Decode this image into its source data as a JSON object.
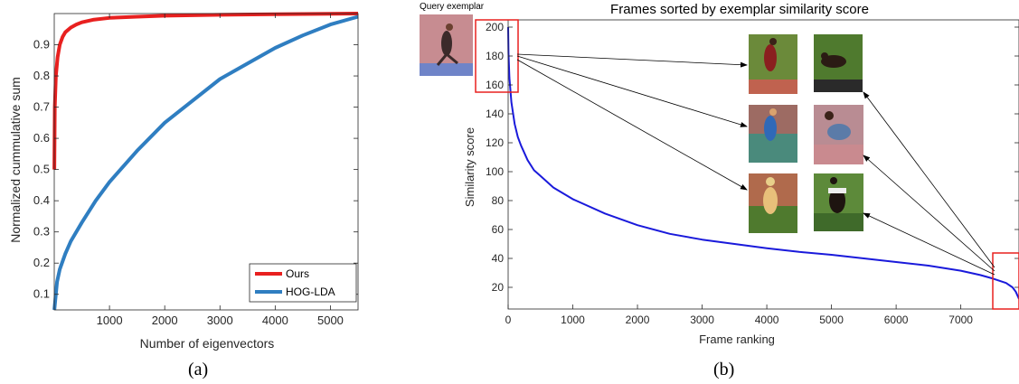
{
  "chart_data": [
    {
      "type": "line",
      "title": "",
      "xlabel": "Number of eigenvectors",
      "ylabel": "Normalized cummulative sum",
      "xlim": [
        0,
        5500
      ],
      "ylim": [
        0.05,
        1.0
      ],
      "xticks": [
        1000,
        2000,
        3000,
        4000,
        5000
      ],
      "yticks": [
        0.1,
        0.2,
        0.3,
        0.4,
        0.5,
        0.6,
        0.7,
        0.8,
        0.9
      ],
      "grid": false,
      "legend_position": "bottom-right",
      "series": [
        {
          "name": "Ours",
          "color": "#e8201f",
          "x": [
            1,
            10,
            30,
            60,
            100,
            150,
            200,
            300,
            400,
            500,
            700,
            1000,
            1500,
            2000,
            3000,
            4000,
            5500
          ],
          "y": [
            0.5,
            0.7,
            0.8,
            0.86,
            0.9,
            0.925,
            0.94,
            0.955,
            0.965,
            0.972,
            0.98,
            0.986,
            0.99,
            0.993,
            0.996,
            0.998,
            1.0
          ]
        },
        {
          "name": "HOG-LDA",
          "color": "#2f7ec1",
          "x": [
            1,
            50,
            100,
            200,
            300,
            500,
            750,
            1000,
            1500,
            2000,
            2500,
            3000,
            3500,
            4000,
            4500,
            5000,
            5500
          ],
          "y": [
            0.05,
            0.14,
            0.18,
            0.23,
            0.27,
            0.33,
            0.4,
            0.46,
            0.56,
            0.65,
            0.72,
            0.79,
            0.84,
            0.89,
            0.93,
            0.965,
            0.99
          ]
        }
      ]
    },
    {
      "type": "line",
      "title": "Frames sorted by exemplar similarity score",
      "xlabel": "Frame ranking",
      "ylabel": "Similarity score",
      "xlim": [
        0,
        7900
      ],
      "ylim": [
        5,
        205
      ],
      "xticks": [
        0,
        1000,
        2000,
        3000,
        4000,
        5000,
        6000,
        7000
      ],
      "yticks": [
        20,
        40,
        60,
        80,
        100,
        120,
        140,
        160,
        180,
        200
      ],
      "grid": false,
      "series": [
        {
          "color": "#1a1adb",
          "x": [
            0,
            5,
            20,
            50,
            100,
            150,
            200,
            300,
            400,
            500,
            700,
            1000,
            1500,
            2000,
            2500,
            3000,
            3500,
            4000,
            4500,
            5000,
            5500,
            6000,
            6500,
            7000,
            7300,
            7500,
            7700,
            7800,
            7850,
            7900
          ],
          "y": [
            200,
            182,
            165,
            148,
            133,
            124,
            118,
            108,
            101,
            97,
            89,
            81,
            71,
            63,
            57,
            53,
            50,
            47,
            44.5,
            42.5,
            40,
            37.5,
            35,
            31.5,
            28.5,
            26,
            23,
            20,
            17,
            12
          ]
        }
      ]
    }
  ],
  "captions": {
    "a": "(a)",
    "b": "(b)"
  },
  "query_label": "Query exemplar",
  "colors": {
    "highlight_box": "#e8201f",
    "arrow": "#000000",
    "track_red": "#c0624f",
    "track_green": "#4f7a2e",
    "track_blue": "#5a86c4"
  }
}
